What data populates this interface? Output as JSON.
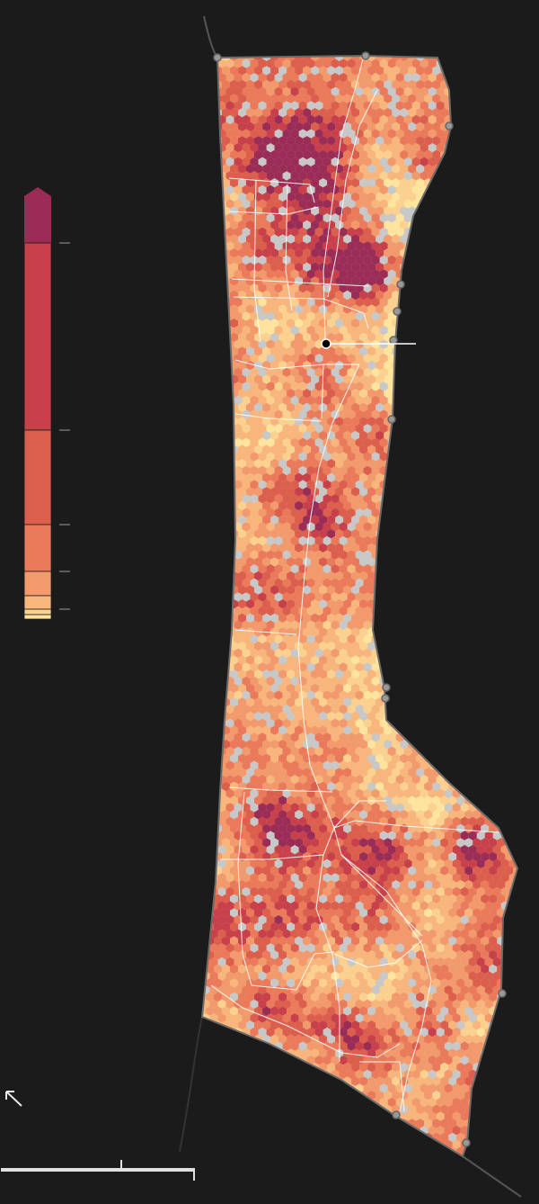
{
  "map": {
    "background": "#1b1b1b",
    "land_color": "#c8c8c8",
    "outline_color": "#6a6a6a",
    "road_color": "#ffffff",
    "marker_icon": "location-dot-icon",
    "north_arrow_icon": "arrow-up-left-icon"
  },
  "legend": {
    "colors": [
      "#9a2c55",
      "#c8404a",
      "#dc5e4c",
      "#ea7a5a",
      "#f29a6c",
      "#f8b67c",
      "#fcd08e",
      "#ffe49e"
    ],
    "tick_count": 5
  },
  "scale_bar": {
    "divisions": 2
  }
}
